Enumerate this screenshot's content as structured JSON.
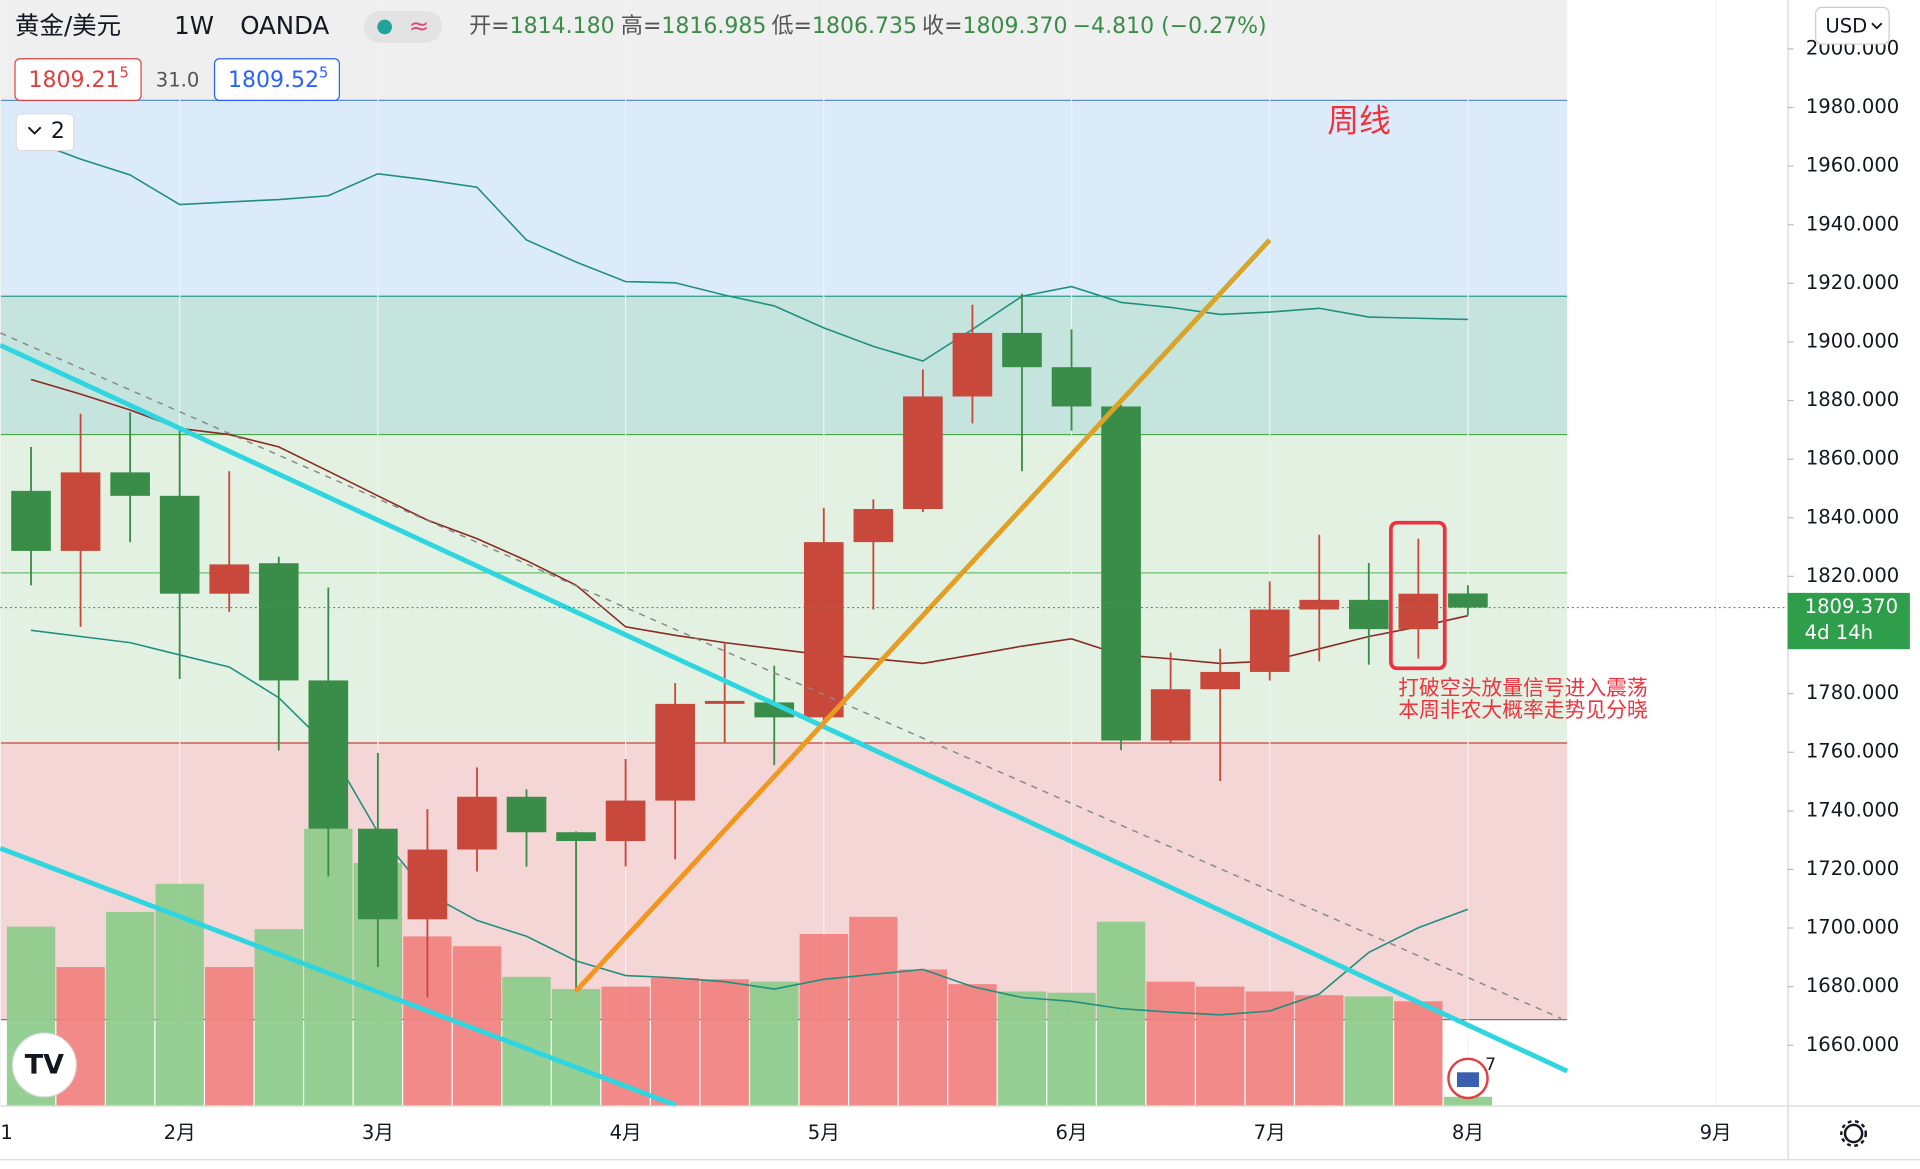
{
  "header": {
    "symbol": "黄金/美元",
    "interval": "1W",
    "source": "OANDA",
    "ohlc": [
      {
        "label": "开=",
        "value": "1814.180"
      },
      {
        "label": "高=",
        "value": "1816.985"
      },
      {
        "label": "低=",
        "value": "1806.735"
      },
      {
        "label": "收=",
        "value": "1809.370"
      }
    ],
    "change": "−4.810 (−0.27%)"
  },
  "quote": {
    "bid": "1809.21",
    "bid_sup": "5",
    "spread": "31.0",
    "ask": "1809.52",
    "ask_sup": "5"
  },
  "indicator_toggle": "2",
  "currency": "USD",
  "events_badge": "7",
  "chart_data": {
    "type": "candlestick",
    "x": [
      0,
      1,
      2,
      3,
      4,
      5,
      6,
      7,
      8,
      9,
      10,
      11,
      12,
      13,
      14,
      15,
      16,
      17,
      18,
      19,
      20,
      21,
      22,
      23,
      24,
      25,
      26,
      27,
      28,
      29
    ],
    "open": [
      1849.2,
      1828.7,
      1855.5,
      1847.5,
      1814.1,
      1824.5,
      1784.5,
      1733.9,
      1703.0,
      1726.8,
      1744.8,
      1732.7,
      1729.7,
      1743.5,
      1776.5,
      1777.0,
      1771.9,
      1831.7,
      1843.0,
      1881.4,
      1903.1,
      1891.4,
      1878.0,
      1764.0,
      1781.5,
      1787.4,
      1808.7,
      1812.0,
      1802.0,
      1814.18
    ],
    "high": [
      1864.2,
      1875.5,
      1876.0,
      1870.5,
      1855.9,
      1826.7,
      1816.2,
      1759.8,
      1740.6,
      1754.8,
      1747.3,
      1733.0,
      1757.7,
      1783.6,
      1797.4,
      1789.5,
      1843.4,
      1846.3,
      1890.6,
      1912.7,
      1916.5,
      1904.3,
      1878.5,
      1794.0,
      1795.3,
      1818.3,
      1834.2,
      1824.6,
      1832.9,
      1816.985
    ],
    "low": [
      1817.0,
      1802.8,
      1831.7,
      1785.0,
      1807.9,
      1760.6,
      1717.6,
      1686.7,
      1676.3,
      1719.3,
      1721.0,
      1678.4,
      1721.0,
      1723.5,
      1763.0,
      1755.6,
      1771.0,
      1808.7,
      1842.0,
      1872.2,
      1855.9,
      1869.7,
      1760.7,
      1763.0,
      1750.2,
      1784.5,
      1791.0,
      1789.9,
      1792.0,
      1806.735
    ],
    "close": [
      1828.7,
      1855.5,
      1847.5,
      1814.1,
      1824.1,
      1784.5,
      1733.9,
      1703.0,
      1726.8,
      1744.8,
      1732.7,
      1729.7,
      1743.5,
      1776.5,
      1777.5,
      1771.9,
      1831.7,
      1843.0,
      1881.4,
      1903.1,
      1891.4,
      1878.0,
      1764.0,
      1781.5,
      1787.4,
      1808.7,
      1812.0,
      1802.0,
      1814.1,
      1809.37
    ],
    "volume": [
      146,
      113,
      158,
      181,
      113,
      144,
      226,
      198,
      138,
      130,
      105,
      95,
      97,
      104,
      103,
      101,
      140,
      154,
      111,
      99,
      93,
      92,
      150,
      101,
      97,
      93,
      90,
      89,
      85,
      7
    ],
    "up_color": "#c9483c",
    "down_color": "#3a8d48",
    "volume_up_color": "#f08482",
    "volume_down_color": "#8fcc8d",
    "bands": [
      {
        "name": "upper",
        "color": "#1f8f7f",
        "values": [
          1968.7,
          1962.4,
          1957.0,
          1946.9,
          1947.8,
          1948.6,
          1949.9,
          1957.4,
          1955.3,
          1952.8,
          1934.8,
          1927.3,
          1920.6,
          1920.2,
          1916.0,
          1912.3,
          1904.8,
          1898.5,
          1893.5,
          1904.3,
          1915.6,
          1918.9,
          1913.5,
          1911.8,
          1909.4,
          1910.2,
          1911.5,
          1908.5,
          1908.1,
          1907.7
        ]
      },
      {
        "name": "middle",
        "color": "#8b2a22",
        "values": [
          1887.2,
          1882.2,
          1876.8,
          1870.5,
          1868.4,
          1864.2,
          1855.9,
          1847.5,
          1839.2,
          1832.9,
          1825.4,
          1817.0,
          1802.8,
          1799.9,
          1797.4,
          1795.3,
          1793.2,
          1791.9,
          1790.3,
          1793.2,
          1796.2,
          1798.7,
          1793.2,
          1791.9,
          1790.3,
          1791.1,
          1795.3,
          1799.5,
          1802.8,
          1806.6
        ]
      },
      {
        "name": "lower",
        "color": "#1f8f7f",
        "values": [
          1801.6,
          1799.5,
          1797.4,
          1793.2,
          1789.1,
          1778.6,
          1761.9,
          1732.7,
          1711.8,
          1702.6,
          1697.2,
          1688.8,
          1683.8,
          1683.0,
          1681.7,
          1679.2,
          1682.5,
          1684.2,
          1685.9,
          1680.0,
          1676.3,
          1675.0,
          1672.5,
          1671.3,
          1670.4,
          1671.7,
          1677.5,
          1691.7,
          1700.1,
          1706.4
        ]
      }
    ],
    "xlim": [
      -0.62,
      35.45
    ],
    "xticks": [
      {
        "value": -0.62,
        "label": "1"
      },
      {
        "value": 3,
        "label": "2月"
      },
      {
        "value": 7,
        "label": "3月"
      },
      {
        "value": 12,
        "label": "4月"
      },
      {
        "value": 16,
        "label": "5月"
      },
      {
        "value": 21,
        "label": "6月"
      },
      {
        "value": 25,
        "label": "7月"
      },
      {
        "value": 29,
        "label": "8月"
      },
      {
        "value": 34,
        "label": "9月"
      }
    ],
    "ylim": [
      1639.5,
      2016.7
    ],
    "yticks": [
      {
        "value": 1660,
        "label": "1660.000"
      },
      {
        "value": 1680,
        "label": "1680.000"
      },
      {
        "value": 1700,
        "label": "1700.000"
      },
      {
        "value": 1720,
        "label": "1720.000"
      },
      {
        "value": 1740,
        "label": "1740.000"
      },
      {
        "value": 1760,
        "label": "1760.000"
      },
      {
        "value": 1780,
        "label": "1780.000"
      },
      {
        "value": 1800,
        "label": "1800.000"
      },
      {
        "value": 1820,
        "label": "1820.000"
      },
      {
        "value": 1840,
        "label": "1840.000"
      },
      {
        "value": 1860,
        "label": "1860.000"
      },
      {
        "value": 1880,
        "label": "1880.000"
      },
      {
        "value": 1900,
        "label": "1900.000"
      },
      {
        "value": 1920,
        "label": "1920.000"
      },
      {
        "value": 1940,
        "label": "1940.000"
      },
      {
        "value": 1960,
        "label": "1960.000"
      },
      {
        "value": 1980,
        "label": "1980.000"
      },
      {
        "value": 2000,
        "label": "2000.000"
      }
    ],
    "grid": true,
    "last_price_label": "1809.370",
    "countdown": "4d 14h",
    "annotations": [
      "周线",
      "打破空头放量信号进入震荡",
      "本周非农大概率走势见分晓"
    ]
  }
}
